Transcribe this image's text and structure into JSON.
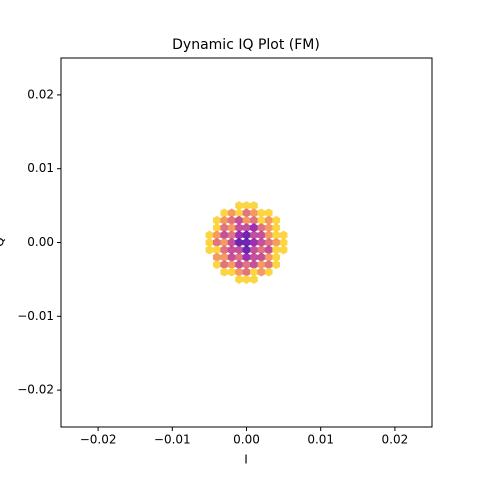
{
  "chart_data": {
    "type": "hexbin",
    "title": "Dynamic IQ Plot (FM)",
    "x_label": "I",
    "y_label": "Q",
    "xlim": [
      -0.025,
      0.025
    ],
    "ylim": [
      -0.025,
      0.025
    ],
    "xticks": [
      {
        "value": -0.02,
        "label": "−0.02"
      },
      {
        "value": -0.01,
        "label": "−0.01"
      },
      {
        "value": 0,
        "label": "0.00"
      },
      0.01,
      0.02
    ],
    "yticks": [
      {
        "value": -0.02,
        "label": "−0.02"
      },
      {
        "value": -0.01,
        "label": "−0.01"
      },
      {
        "value": 0,
        "label": "0.00"
      },
      0.01,
      0.02
    ],
    "grid": false,
    "colormap": [
      "#fcce25",
      "#f48849",
      "#db5c68",
      "#b83289",
      "#8b0aa5",
      "#5302a3"
    ],
    "x": [
      -0.001,
      0,
      0.001,
      -0.003,
      -0.002,
      -0.001,
      0,
      0.001,
      0.002,
      0.003,
      -0.004,
      -0.003,
      -0.002,
      -0.001,
      0,
      0.001,
      0.002,
      0.003,
      0.004,
      -0.004,
      -0.003,
      -0.002,
      -0.001,
      0,
      0.001,
      0.002,
      0.003,
      0.004,
      -0.005,
      -0.004,
      -0.003,
      -0.002,
      -0.001,
      0,
      0.001,
      0.002,
      0.003,
      0.004,
      0.005,
      -0.005,
      -0.004,
      -0.003,
      -0.002,
      -0.001,
      0,
      0.001,
      0.002,
      0.003,
      0.004,
      0.005,
      -0.005,
      -0.004,
      -0.003,
      -0.002,
      -0.001,
      0,
      0.001,
      0.002,
      0.003,
      0.004,
      0.005,
      -0.004,
      -0.003,
      -0.002,
      -0.001,
      0,
      0.001,
      0.002,
      0.003,
      0.004,
      -0.004,
      -0.003,
      -0.002,
      -0.001,
      0,
      0.001,
      0.002,
      0.003,
      0.004,
      -0.003,
      -0.002,
      -0.001,
      0,
      0.001,
      0.002,
      0.003,
      -0.001,
      0,
      0.001
    ],
    "values": [
      0.005,
      0.005,
      0.005,
      0.004,
      0.004,
      0.004,
      0.004,
      0.004,
      0.004,
      0.004,
      0.003,
      0.003,
      0.003,
      0.003,
      0.003,
      0.003,
      0.003,
      0.003,
      0.003,
      0.002,
      0.002,
      0.002,
      0.002,
      0.002,
      0.002,
      0.002,
      0.002,
      0.002,
      0.001,
      0.001,
      0.001,
      0.001,
      0.001,
      0.001,
      0.001,
      0.001,
      0.001,
      0.001,
      0.001,
      0,
      0,
      0,
      0,
      0,
      0,
      0,
      0,
      0,
      0,
      0,
      -0.001,
      -0.001,
      -0.001,
      -0.001,
      -0.001,
      -0.001,
      -0.001,
      -0.001,
      -0.001,
      -0.001,
      -0.001,
      -0.002,
      -0.002,
      -0.002,
      -0.002,
      -0.002,
      -0.002,
      -0.002,
      -0.002,
      -0.002,
      -0.003,
      -0.003,
      -0.003,
      -0.003,
      -0.003,
      -0.003,
      -0.003,
      -0.003,
      -0.003,
      -0.004,
      -0.004,
      -0.004,
      -0.004,
      -0.004,
      -0.004,
      -0.004,
      -0.005,
      -0.005,
      -0.005
    ],
    "counts": [
      2,
      1,
      2,
      1,
      3,
      2,
      4,
      3,
      2,
      1,
      2,
      3,
      4,
      5,
      3,
      4,
      2,
      3,
      1,
      1,
      4,
      3,
      6,
      5,
      7,
      4,
      3,
      2,
      2,
      3,
      5,
      4,
      7,
      9,
      6,
      5,
      3,
      2,
      1,
      1,
      4,
      3,
      6,
      8,
      9,
      7,
      5,
      4,
      3,
      2,
      2,
      2,
      4,
      6,
      5,
      8,
      6,
      4,
      5,
      2,
      1,
      3,
      3,
      5,
      4,
      7,
      5,
      6,
      3,
      2,
      1,
      4,
      3,
      5,
      4,
      6,
      3,
      4,
      2,
      2,
      2,
      3,
      4,
      2,
      3,
      1,
      1,
      2,
      1
    ]
  }
}
